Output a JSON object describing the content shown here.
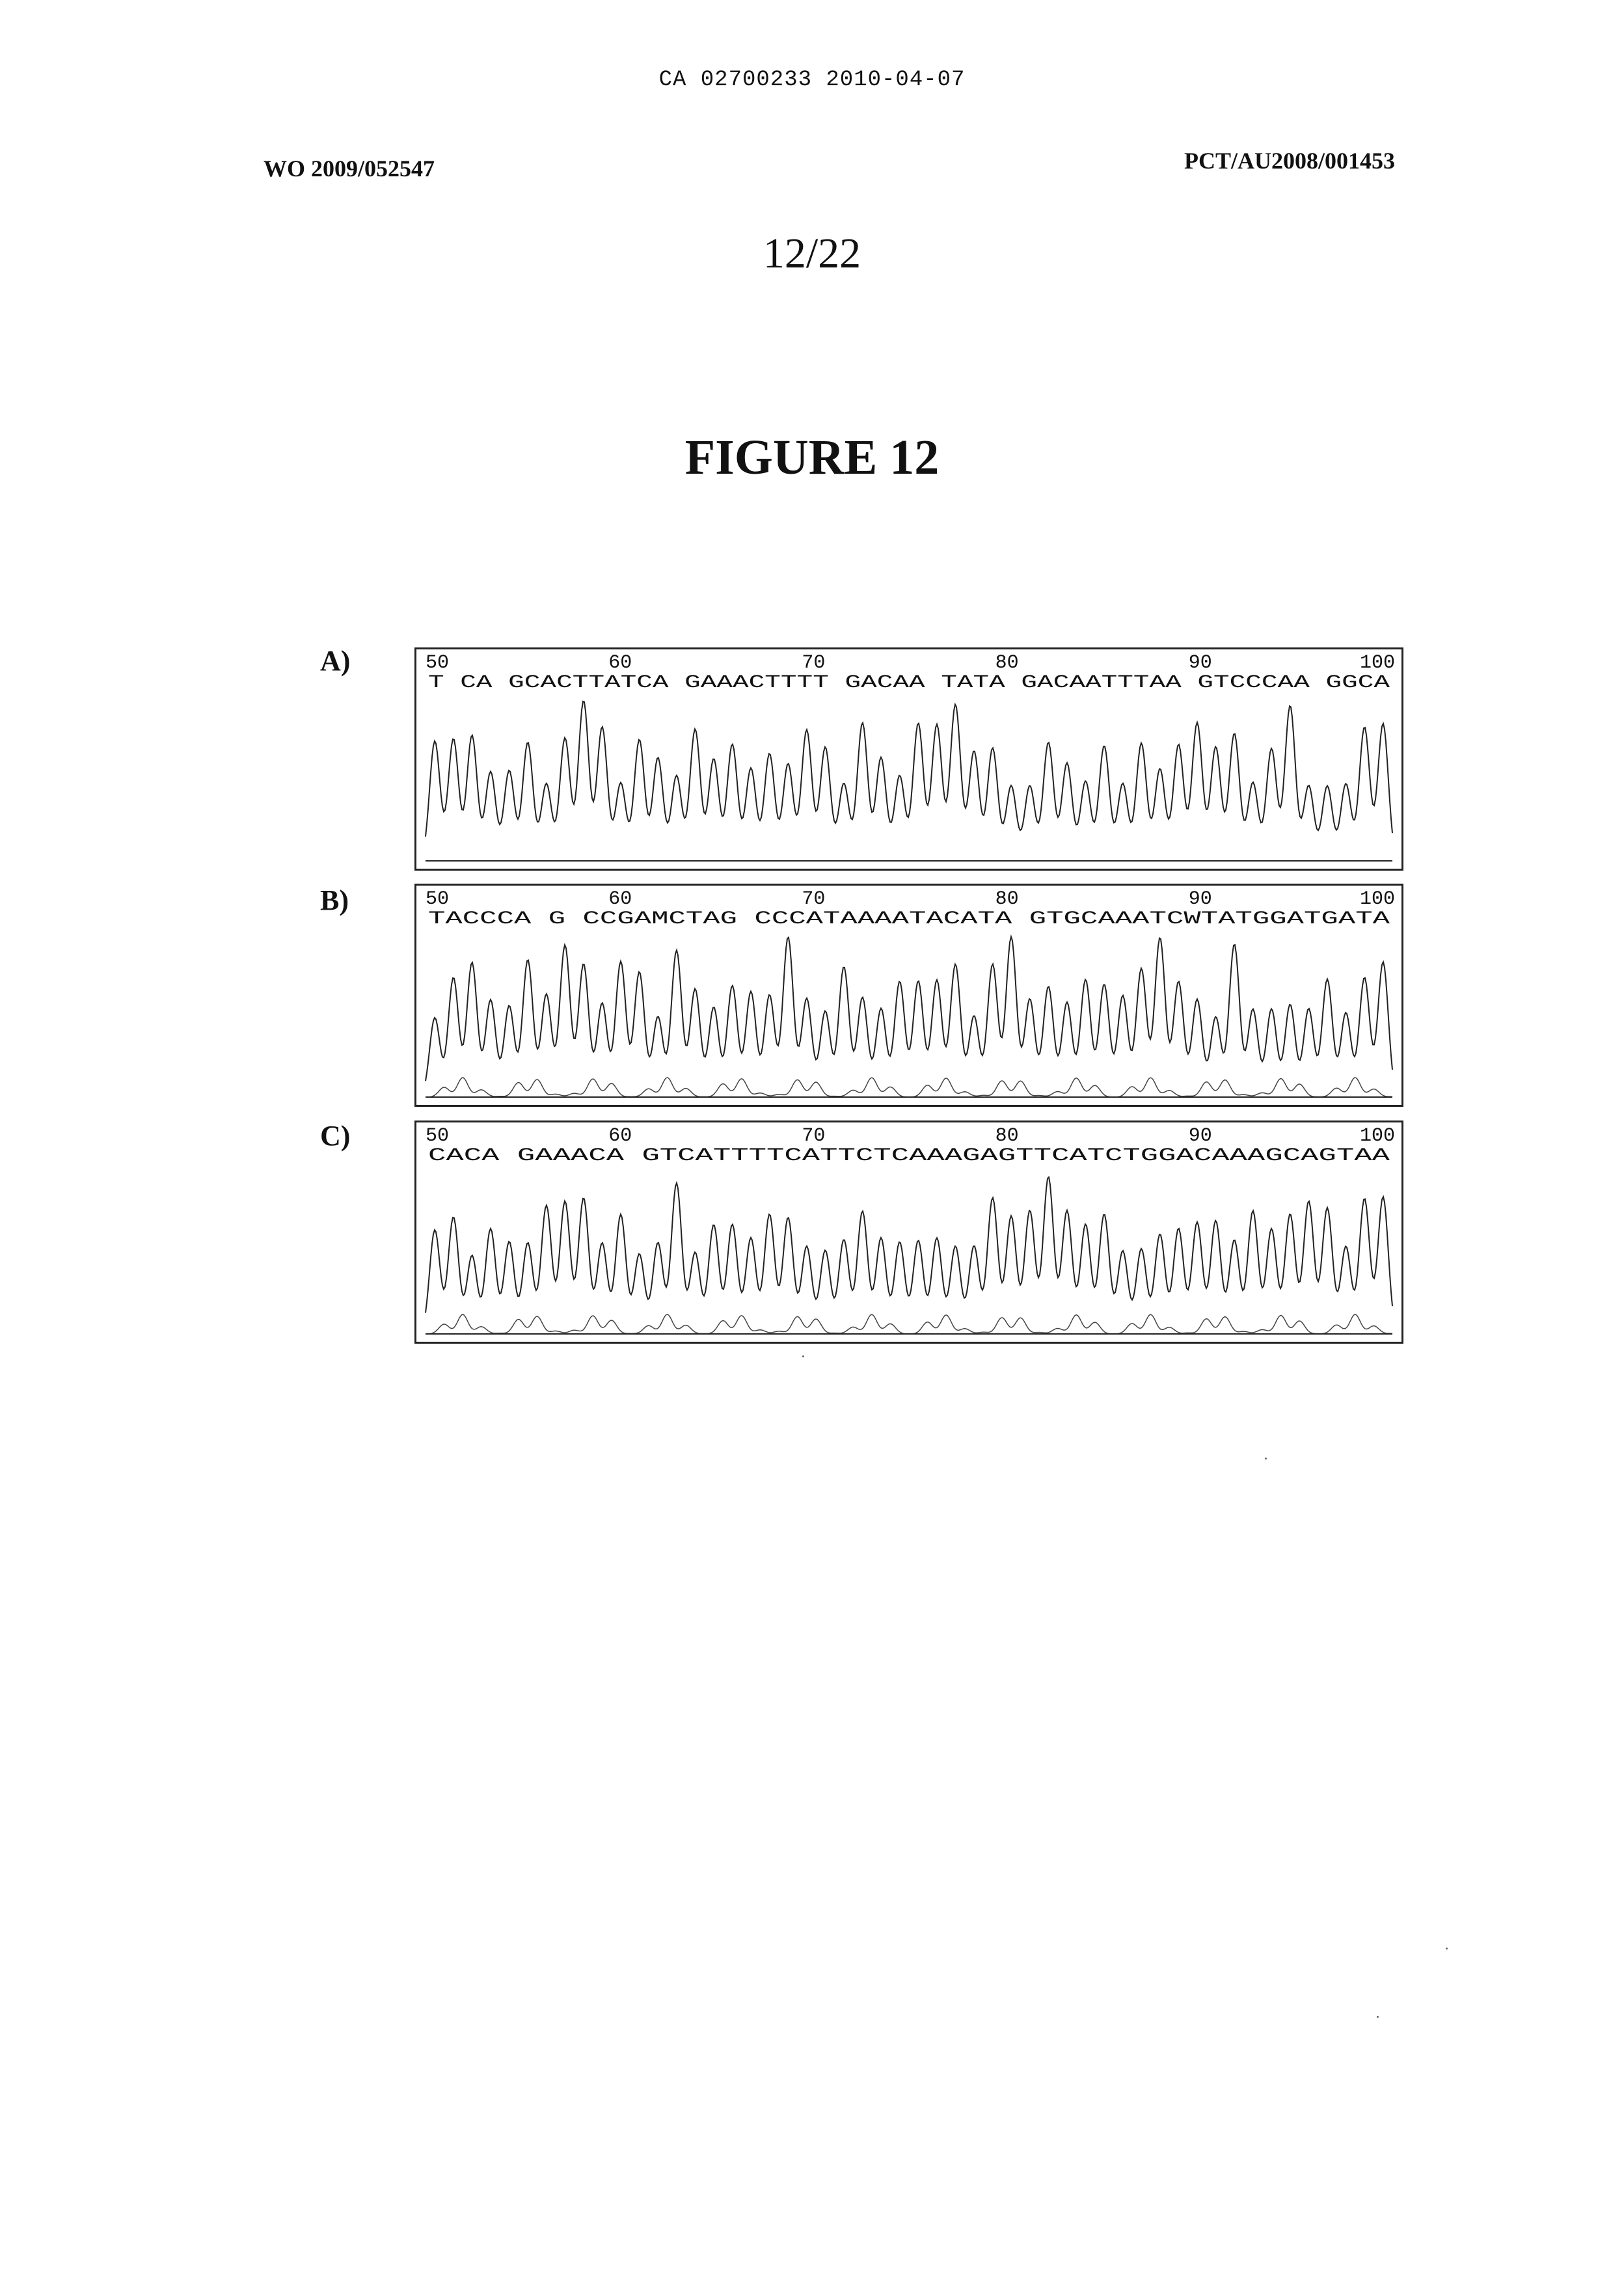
{
  "header": {
    "ca_number": "CA 02700233 2010-04-07",
    "wo_number": "WO 2009/052547",
    "pct_number": "PCT/AU2008/001453"
  },
  "page_number": "12/22",
  "figure_title": "FIGURE 12",
  "panels": [
    {
      "label": "A)",
      "ruler": [
        "50",
        "60",
        "70",
        "80",
        "90",
        "100"
      ],
      "sequence": "TCAGCACTTATCAGAAACTTTTGACAATATAGACAATTTAAGTCCCAAGGCA",
      "display_sequence": "T CA GCACTTATCA GAAACTTTT GACAA TATA GACAATTTAA GTCCCAA GGCA"
    },
    {
      "label": "B)",
      "ruler": [
        "50",
        "60",
        "70",
        "80",
        "90",
        "100"
      ],
      "sequence": "TACCCAGCCGAMCTAGCCCATAAAATACATAGTGCAAATCWTATGGATGATA",
      "display_sequence": "TACCCA G CCGAMCTAG CCCATAAAATACATA GTGCAAATCWTATGGATGATA"
    },
    {
      "label": "C)",
      "ruler": [
        "50",
        "60",
        "70",
        "80",
        "90",
        "100"
      ],
      "sequence": "CACAGAAACAGTCATTTTCATTCTCAAAGAGTTCATCTGGACAAAGCAGTAA",
      "display_sequence": "CACA GAAACA GTCATTTTCATTCTCAAAGAGTTCATCTGGACAAAGCAGTAA"
    }
  ]
}
